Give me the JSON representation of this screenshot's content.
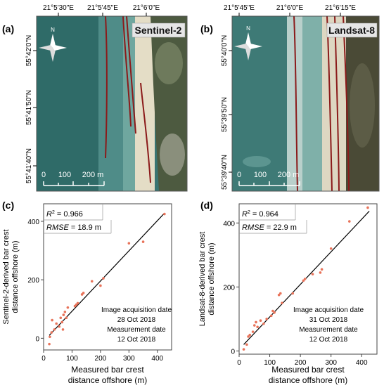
{
  "panels": {
    "a": {
      "letter": "(a)",
      "satellite": "Sentinel-2",
      "lon_ticks": [
        "21°5'30\"E",
        "21°5'45\"E",
        "21°6'0\"E"
      ],
      "lat_ticks": [
        "55°42'0\"N",
        "55°41'50\"N",
        "55°41'40\"N"
      ],
      "scale_labels": [
        "0",
        "100",
        "200 m"
      ],
      "north_label": "N"
    },
    "b": {
      "letter": "(b)",
      "satellite": "Landsat-8",
      "lon_ticks": [
        "21°5'45\"E",
        "21°6'0\"E",
        "21°6'15\"E"
      ],
      "lat_ticks": [
        "55°40'0\"N",
        "55°39'50\"N",
        "55°39'40\"N"
      ],
      "scale_labels": [
        "0",
        "100",
        "200 m"
      ],
      "north_label": "N"
    }
  },
  "colors": {
    "sea_dark": "#2f6b68",
    "sea_light": "#5e9c97",
    "sand": "#e4ddc6",
    "vegetation": "#4d5a40",
    "crest_line": "#8b1a1a",
    "point": "#e8735a",
    "fit_line": "#000000"
  },
  "chart_data": [
    {
      "id": "c",
      "letter": "(c)",
      "type": "scatter",
      "xlabel": [
        "Measured bar crest",
        "distance offshore (m)"
      ],
      "ylabel": [
        "Sentinel-2-derived bar crest",
        "distance offshore (m)"
      ],
      "xlim": [
        0,
        450
      ],
      "ylim": [
        -40,
        460
      ],
      "xticks": [
        0,
        100,
        200,
        300,
        400
      ],
      "yticks": [
        0,
        200,
        400
      ],
      "r2_label": "R",
      "r2_sup": "2",
      "r2_value": " = 0.966",
      "rmse_label": "RMSE",
      "rmse_value": " = 18.9 m",
      "acq_label": "Image acquisition date",
      "acq_date": "28 Oct 2018",
      "meas_label": "Measurement date",
      "meas_date": "12 Oct 2018",
      "fit": [
        [
          20,
          10
        ],
        [
          425,
          428
        ]
      ],
      "points": [
        [
          20,
          -20
        ],
        [
          22,
          5
        ],
        [
          28,
          20
        ],
        [
          30,
          62
        ],
        [
          38,
          30
        ],
        [
          45,
          50
        ],
        [
          55,
          40
        ],
        [
          60,
          70
        ],
        [
          65,
          55
        ],
        [
          68,
          30
        ],
        [
          70,
          80
        ],
        [
          75,
          90
        ],
        [
          80,
          70
        ],
        [
          85,
          105
        ],
        [
          110,
          110
        ],
        [
          115,
          115
        ],
        [
          120,
          120
        ],
        [
          135,
          150
        ],
        [
          140,
          155
        ],
        [
          170,
          195
        ],
        [
          200,
          180
        ],
        [
          210,
          205
        ],
        [
          300,
          325
        ],
        [
          350,
          330
        ],
        [
          425,
          425
        ]
      ]
    },
    {
      "id": "d",
      "letter": "(d)",
      "type": "scatter",
      "xlabel": [
        "Measured bar crest",
        "distance offshore (m)"
      ],
      "ylabel": [
        "Landsat-8-derived bar crest",
        "distance offshore (m)"
      ],
      "xlim": [
        0,
        450
      ],
      "ylim": [
        -10,
        460
      ],
      "xticks": [
        0,
        100,
        200,
        300,
        400
      ],
      "yticks": [
        0,
        200,
        400
      ],
      "r2_label": "R",
      "r2_sup": "2",
      "r2_value": " = 0.964",
      "rmse_label": "RMSE",
      "rmse_value": " = 22.9 m",
      "acq_label": "Image acquisition date",
      "acq_date": "31 Oct 2018",
      "meas_label": "Measurement date",
      "meas_date": "12 Oct 2018",
      "fit": [
        [
          15,
          20
        ],
        [
          425,
          437
        ]
      ],
      "points": [
        [
          15,
          5
        ],
        [
          25,
          20
        ],
        [
          30,
          45
        ],
        [
          35,
          50
        ],
        [
          45,
          60
        ],
        [
          50,
          80
        ],
        [
          55,
          90
        ],
        [
          60,
          75
        ],
        [
          70,
          95
        ],
        [
          80,
          85
        ],
        [
          90,
          100
        ],
        [
          105,
          110
        ],
        [
          110,
          125
        ],
        [
          115,
          120
        ],
        [
          130,
          175
        ],
        [
          135,
          180
        ],
        [
          140,
          150
        ],
        [
          175,
          180
        ],
        [
          210,
          220
        ],
        [
          215,
          225
        ],
        [
          240,
          240
        ],
        [
          265,
          245
        ],
        [
          270,
          255
        ],
        [
          300,
          320
        ],
        [
          360,
          405
        ],
        [
          420,
          448
        ]
      ]
    }
  ]
}
